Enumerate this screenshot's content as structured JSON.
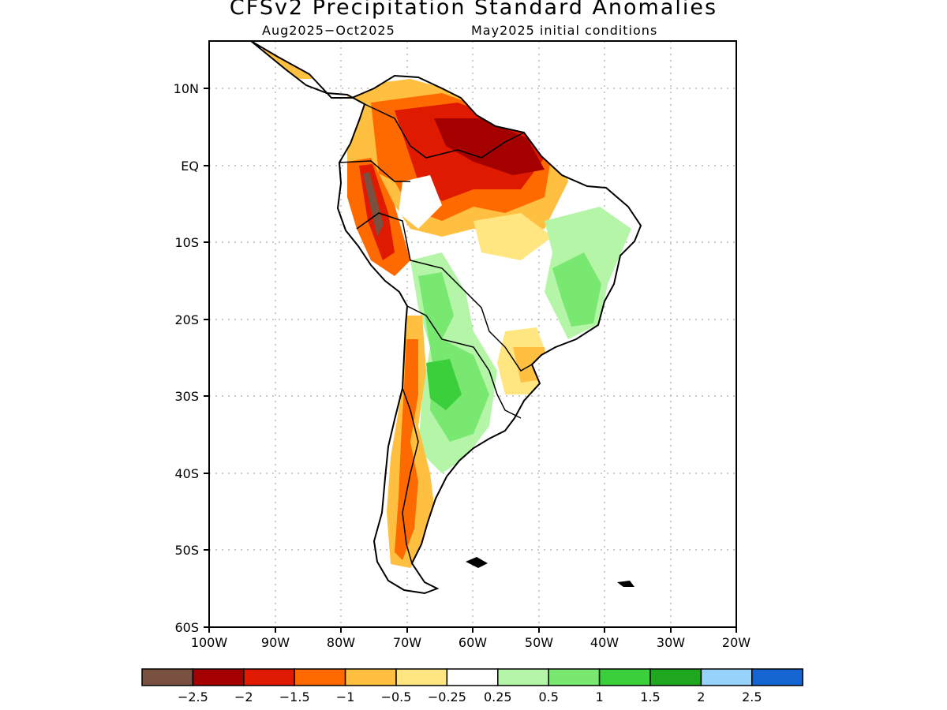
{
  "map": {
    "title": "CFSv2 Precipitation Standard Anomalies",
    "period": "Aug2025−Oct2025",
    "init": "May2025 initial conditions",
    "lat_ticks": [
      "10N",
      "EQ",
      "10S",
      "20S",
      "30S",
      "40S",
      "50S",
      "60S"
    ],
    "lon_ticks": [
      "100W",
      "90W",
      "80W",
      "70W",
      "60W",
      "50W",
      "40W",
      "30W",
      "20W"
    ],
    "extent": {
      "lon": [
        -100,
        -20
      ],
      "lat": [
        -60,
        16
      ]
    }
  },
  "legend": {
    "colors": [
      "#7a5040",
      "#a50000",
      "#e01a00",
      "#ff6a00",
      "#ffbf40",
      "#ffe680",
      "#ffffff",
      "#b4f5a8",
      "#78e870",
      "#3ccf3c",
      "#1fa81f",
      "#96d2fa",
      "#1464d2"
    ],
    "labels": [
      "−2.5",
      "−2",
      "−1.5",
      "−1",
      "−0.5",
      "−0.25",
      "0.25",
      "0.5",
      "1",
      "1.5",
      "2",
      "2.5"
    ]
  }
}
